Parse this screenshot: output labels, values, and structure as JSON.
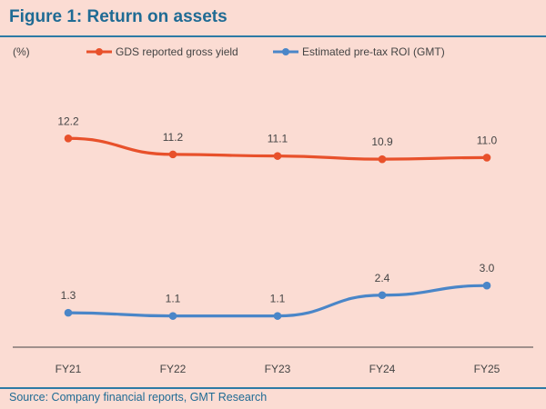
{
  "figure": {
    "title": "Figure 1: Return on assets",
    "source": "Source: Company financial reports, GMT Research"
  },
  "colors": {
    "series_1": "#e8512b",
    "series_2": "#4a86c8",
    "title": "#1f6b94",
    "background": "#fbdcd3"
  },
  "chart_data": {
    "type": "line",
    "unit_label": "(%)",
    "categories": [
      "FY21",
      "FY22",
      "FY23",
      "FY24",
      "FY25"
    ],
    "series": [
      {
        "name": "GDS reported gross yield",
        "values": [
          12.2,
          11.2,
          11.1,
          10.9,
          11.0
        ],
        "labels": [
          "12.2",
          "11.2",
          "11.1",
          "10.9",
          "11.0"
        ]
      },
      {
        "name": "Estimated pre-tax ROI (GMT)",
        "values": [
          1.3,
          1.1,
          1.1,
          2.4,
          3.0
        ],
        "labels": [
          "1.3",
          "1.1",
          "1.1",
          "2.4",
          "3.0"
        ]
      }
    ],
    "ylim": [
      0,
      13.5
    ],
    "legend_position": "top",
    "grid": false
  }
}
